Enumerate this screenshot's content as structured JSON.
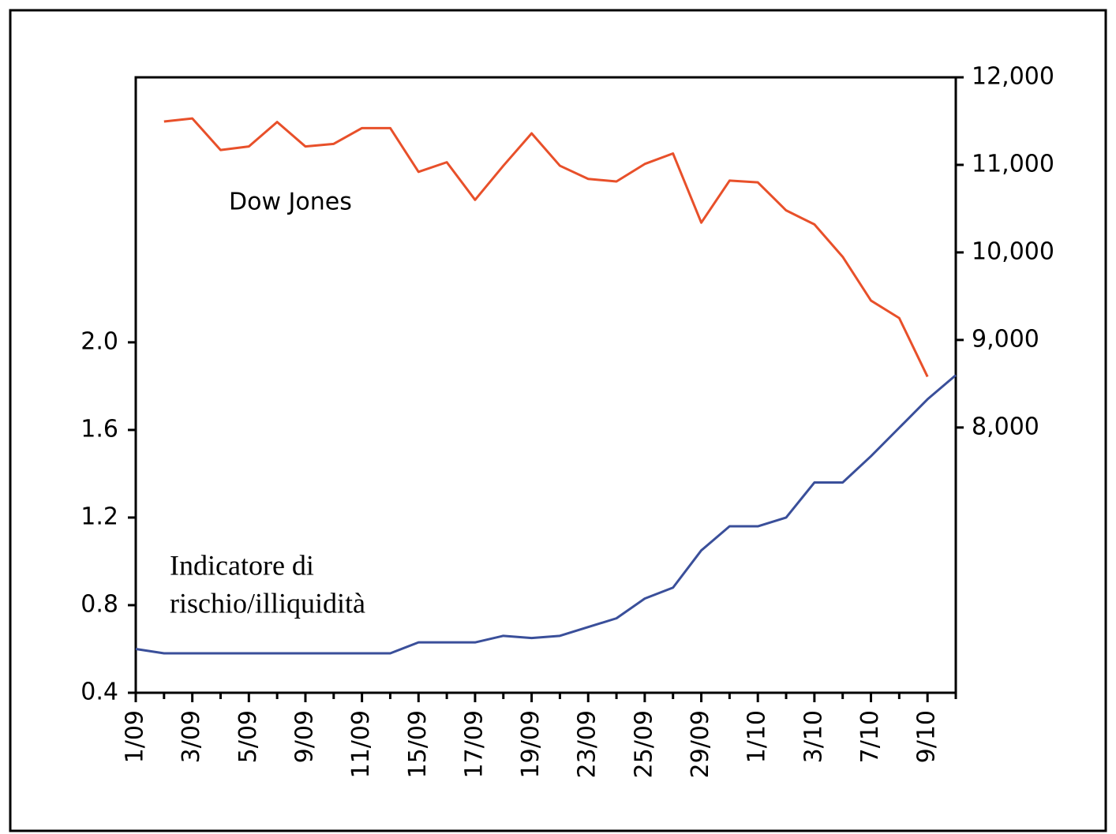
{
  "chart_data": {
    "type": "line",
    "categories": [
      "1/09",
      null,
      "3/09",
      null,
      "5/09",
      null,
      "9/09",
      null,
      "11/09",
      null,
      "15/09",
      null,
      "17/09",
      null,
      "19/09",
      null,
      "23/09",
      null,
      "25/09",
      null,
      "29/09",
      null,
      "1/10",
      null,
      "3/10",
      null,
      "7/10",
      null,
      "9/10",
      null
    ],
    "series": [
      {
        "name": "Dow Jones",
        "color": "#e8502a",
        "axis": "y2",
        "values": [
          null,
          11495,
          11530,
          11170,
          11210,
          11490,
          11210,
          11240,
          11420,
          11420,
          10920,
          11030,
          10600,
          10990,
          11360,
          10990,
          10840,
          10810,
          11010,
          11130,
          10340,
          10820,
          10800,
          10480,
          10320,
          9950,
          9450,
          9250,
          8580,
          null
        ]
      },
      {
        "name": "Indicatore di rischio/illiquidità",
        "color": "#3a4f9a",
        "axis": "y",
        "values": [
          0.6,
          0.58,
          0.58,
          0.58,
          0.58,
          0.58,
          0.58,
          0.58,
          0.58,
          0.58,
          0.63,
          0.63,
          0.63,
          0.66,
          0.65,
          0.66,
          0.7,
          0.74,
          0.83,
          0.88,
          1.05,
          1.16,
          1.16,
          1.2,
          1.36,
          1.36,
          1.48,
          1.61,
          1.74,
          1.85
        ]
      }
    ],
    "annotations": [
      {
        "lines": [
          "Dow Jones"
        ]
      },
      {
        "lines": [
          "Indicatore di",
          "rischio/illiquidità"
        ]
      }
    ],
    "ylim": [
      0.4,
      3.21
    ],
    "yticks": [
      0.4,
      0.8,
      1.2,
      1.6,
      {
        "value": 2,
        "label": "2.0"
      }
    ],
    "y2lim": [
      4970,
      12000
    ],
    "y2ticks": [
      {
        "value": 8000,
        "label": "8,000"
      },
      {
        "value": 9000,
        "label": "9,000"
      },
      {
        "value": 10000,
        "label": "10,000"
      },
      {
        "value": 11000,
        "label": "11,000"
      },
      {
        "value": 12000,
        "label": "12,000"
      }
    ],
    "grid": false
  }
}
